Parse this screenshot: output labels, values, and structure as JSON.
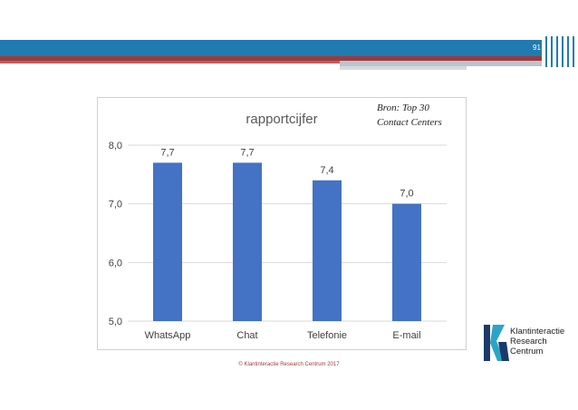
{
  "slide": {
    "page_number": "91",
    "source_note": "Bron: Top 30 Contact Centers",
    "copyright": "© Klantinteractie Research Centrum 2017",
    "logo_lines": [
      "Klantinteractie",
      "Research",
      "Centrum"
    ],
    "colors": {
      "header_blue": "#1f7bb0",
      "header_red": "#9e3a3c",
      "logo_navy": "#1a3a6b",
      "logo_teal": "#2aa5c7"
    }
  },
  "chart_data": {
    "type": "bar",
    "title": "rapportcijfer",
    "categories": [
      "WhatsApp",
      "Chat",
      "Telefonie",
      "E-mail"
    ],
    "values": [
      7.7,
      7.7,
      7.4,
      7.0
    ],
    "data_labels": [
      "7,7",
      "7,7",
      "7,4",
      "7,0"
    ],
    "yticks": [
      5.0,
      6.0,
      7.0,
      8.0
    ],
    "ytick_labels": [
      "5,0",
      "6,0",
      "7,0",
      "8,0"
    ],
    "ylim": [
      5.0,
      8.0
    ],
    "xlabel": "",
    "ylabel": "",
    "grid": true,
    "bar_color": "#4472c4"
  }
}
